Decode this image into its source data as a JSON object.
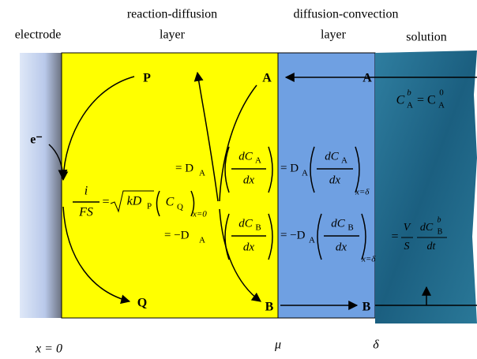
{
  "header": {
    "electrode": "electrode",
    "reaction_diffusion": "reaction-diffusion",
    "reaction_layer": "layer",
    "diffusion_convection": "diffusion-convection",
    "convection_layer": "layer",
    "solution": "solution"
  },
  "positions": {
    "x0": "x = 0",
    "mu": "μ",
    "delta": "δ"
  },
  "species": {
    "P": "P",
    "A_left": "A",
    "A_right": "A",
    "electron": "e⁻",
    "Q": "Q",
    "B_left": "B",
    "B_right": "B"
  },
  "equations": {
    "bulk": {
      "c1": "C",
      "sup1": "b",
      "sub1": "A",
      "eq": "= C",
      "sup2": "0",
      "sub2": "A"
    },
    "flux_a_left": {
      "eq": "= D",
      "sub": "A",
      "num": "dC",
      "num_sub": "A",
      "den": "dx"
    },
    "flux_a_right": {
      "eq": "= D",
      "sub": "A",
      "num": "dC",
      "num_sub": "A",
      "den": "dx",
      "at": "x=δ"
    },
    "current": {
      "num": "i",
      "den": "FS",
      "eq": "=",
      "root": "kD",
      "root_sub": "P",
      "c": "C",
      "c_sub": "Q",
      "at": "x=0"
    },
    "flux_b_left": {
      "eq": "= −D",
      "sub": "A",
      "num": "dC",
      "num_sub": "B",
      "den": "dx"
    },
    "flux_b_right": {
      "eq": "= −D",
      "sub": "A",
      "num": "dC",
      "num_sub": "B",
      "den": "dx",
      "at": "x=δ"
    },
    "mass": {
      "eq": "=",
      "num": "V",
      "den": "S",
      "num2": "dC",
      "num2_sup": "b",
      "num2_sub": "B",
      "den2": "dt"
    }
  }
}
